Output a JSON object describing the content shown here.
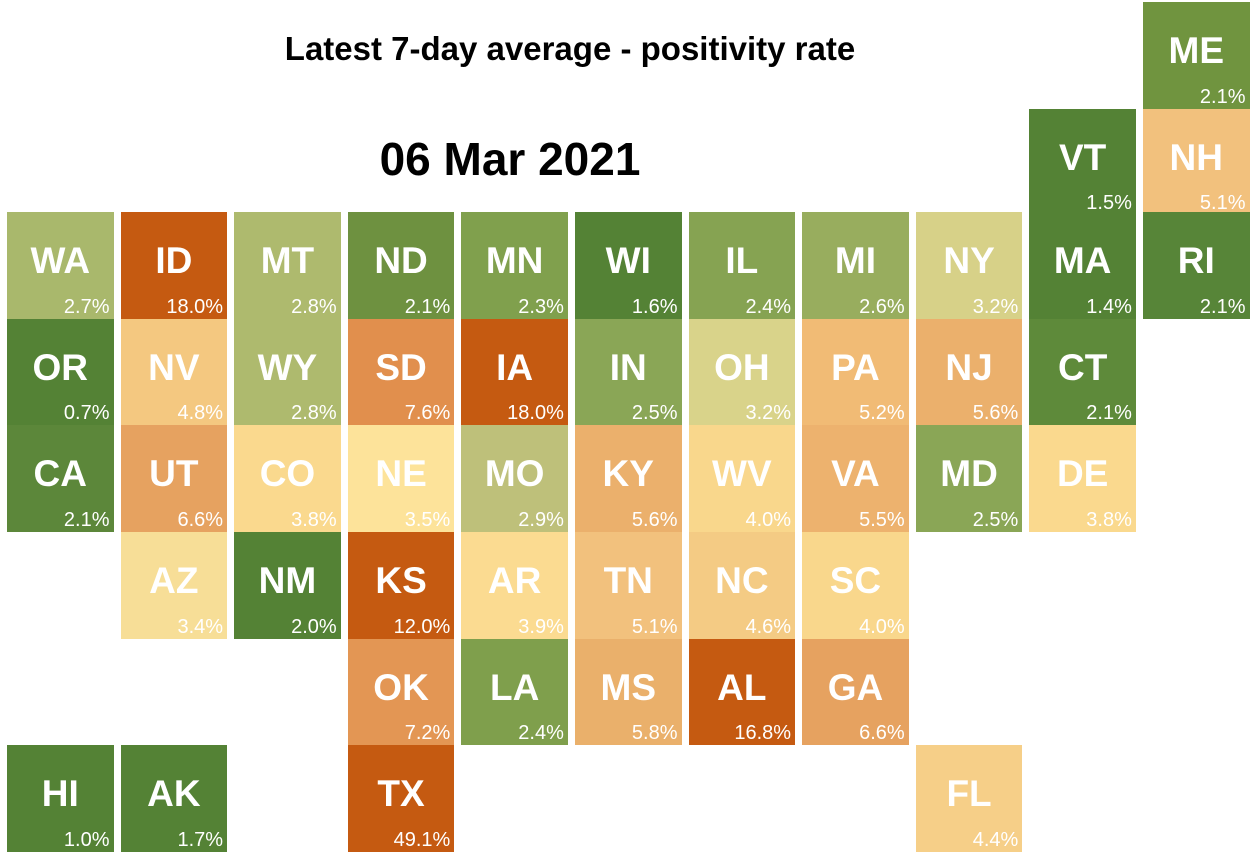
{
  "chart_data": {
    "type": "heatmap",
    "title": "Latest 7-day average - positivity rate",
    "subtitle": "06 Mar 2021",
    "unit": "%",
    "tiles": [
      {
        "state": "ME",
        "value": 2.1,
        "label": "2.1%",
        "row": 0,
        "col": 10,
        "color": "#70943f"
      },
      {
        "state": "VT",
        "value": 1.5,
        "label": "1.5%",
        "row": 1,
        "col": 9,
        "color": "#548235"
      },
      {
        "state": "NH",
        "value": 5.1,
        "label": "5.1%",
        "row": 1,
        "col": 10,
        "color": "#f2c17d"
      },
      {
        "state": "WA",
        "value": 2.7,
        "label": "2.7%",
        "row": 2,
        "col": 0,
        "color": "#a9b86c"
      },
      {
        "state": "ID",
        "value": 18.0,
        "label": "18.0%",
        "row": 2,
        "col": 1,
        "color": "#c55a11"
      },
      {
        "state": "MT",
        "value": 2.8,
        "label": "2.8%",
        "row": 2,
        "col": 2,
        "color": "#aeba6e"
      },
      {
        "state": "ND",
        "value": 2.1,
        "label": "2.1%",
        "row": 2,
        "col": 3,
        "color": "#6e9140"
      },
      {
        "state": "MN",
        "value": 2.3,
        "label": "2.3%",
        "row": 2,
        "col": 4,
        "color": "#80a04d"
      },
      {
        "state": "WI",
        "value": 1.6,
        "label": "1.6%",
        "row": 2,
        "col": 5,
        "color": "#548235"
      },
      {
        "state": "IL",
        "value": 2.4,
        "label": "2.4%",
        "row": 2,
        "col": 6,
        "color": "#86a352"
      },
      {
        "state": "MI",
        "value": 2.6,
        "label": "2.6%",
        "row": 2,
        "col": 7,
        "color": "#98ad5e"
      },
      {
        "state": "NY",
        "value": 3.2,
        "label": "3.2%",
        "row": 2,
        "col": 8,
        "color": "#d7d188"
      },
      {
        "state": "MA",
        "value": 1.4,
        "label": "1.4%",
        "row": 2,
        "col": 9,
        "color": "#548235"
      },
      {
        "state": "RI",
        "value": 2.1,
        "label": "2.1%",
        "row": 2,
        "col": 10,
        "color": "#578538"
      },
      {
        "state": "OR",
        "value": 0.7,
        "label": "0.7%",
        "row": 3,
        "col": 0,
        "color": "#548235"
      },
      {
        "state": "NV",
        "value": 4.8,
        "label": "4.8%",
        "row": 3,
        "col": 1,
        "color": "#f4c880"
      },
      {
        "state": "WY",
        "value": 2.8,
        "label": "2.8%",
        "row": 3,
        "col": 2,
        "color": "#aeba6e"
      },
      {
        "state": "SD",
        "value": 7.6,
        "label": "7.6%",
        "row": 3,
        "col": 3,
        "color": "#e18f4d"
      },
      {
        "state": "IA",
        "value": 18.0,
        "label": "18.0%",
        "row": 3,
        "col": 4,
        "color": "#c55a11"
      },
      {
        "state": "IN",
        "value": 2.5,
        "label": "2.5%",
        "row": 3,
        "col": 5,
        "color": "#8aa656"
      },
      {
        "state": "OH",
        "value": 3.2,
        "label": "3.2%",
        "row": 3,
        "col": 6,
        "color": "#d9d38a"
      },
      {
        "state": "PA",
        "value": 5.2,
        "label": "5.2%",
        "row": 3,
        "col": 7,
        "color": "#f1bb75"
      },
      {
        "state": "NJ",
        "value": 5.6,
        "label": "5.6%",
        "row": 3,
        "col": 8,
        "color": "#ebb06c"
      },
      {
        "state": "CT",
        "value": 2.1,
        "label": "2.1%",
        "row": 3,
        "col": 9,
        "color": "#5e8a3a"
      },
      {
        "state": "CA",
        "value": 2.1,
        "label": "2.1%",
        "row": 4,
        "col": 0,
        "color": "#5c873a"
      },
      {
        "state": "UT",
        "value": 6.6,
        "label": "6.6%",
        "row": 4,
        "col": 1,
        "color": "#e6a260"
      },
      {
        "state": "CO",
        "value": 3.8,
        "label": "3.8%",
        "row": 4,
        "col": 2,
        "color": "#fad98e"
      },
      {
        "state": "NE",
        "value": 3.5,
        "label": "3.5%",
        "row": 4,
        "col": 3,
        "color": "#fde39a"
      },
      {
        "state": "MO",
        "value": 2.9,
        "label": "2.9%",
        "row": 4,
        "col": 4,
        "color": "#bec07a"
      },
      {
        "state": "KY",
        "value": 5.6,
        "label": "5.6%",
        "row": 4,
        "col": 5,
        "color": "#ebb06c"
      },
      {
        "state": "WV",
        "value": 4.0,
        "label": "4.0%",
        "row": 4,
        "col": 6,
        "color": "#f9d78c"
      },
      {
        "state": "VA",
        "value": 5.5,
        "label": "5.5%",
        "row": 4,
        "col": 7,
        "color": "#edb26e"
      },
      {
        "state": "MD",
        "value": 2.5,
        "label": "2.5%",
        "row": 4,
        "col": 8,
        "color": "#8aa656"
      },
      {
        "state": "DE",
        "value": 3.8,
        "label": "3.8%",
        "row": 4,
        "col": 9,
        "color": "#fad98e"
      },
      {
        "state": "AZ",
        "value": 3.4,
        "label": "3.4%",
        "row": 5,
        "col": 1,
        "color": "#f7de97"
      },
      {
        "state": "NM",
        "value": 2.0,
        "label": "2.0%",
        "row": 5,
        "col": 2,
        "color": "#548235"
      },
      {
        "state": "KS",
        "value": 12.0,
        "label": "12.0%",
        "row": 5,
        "col": 3,
        "color": "#c55a11"
      },
      {
        "state": "AR",
        "value": 3.9,
        "label": "3.9%",
        "row": 5,
        "col": 4,
        "color": "#fbdb91"
      },
      {
        "state": "TN",
        "value": 5.1,
        "label": "5.1%",
        "row": 5,
        "col": 5,
        "color": "#f2c17d"
      },
      {
        "state": "NC",
        "value": 4.6,
        "label": "4.6%",
        "row": 5,
        "col": 6,
        "color": "#f4cb84"
      },
      {
        "state": "SC",
        "value": 4.0,
        "label": "4.0%",
        "row": 5,
        "col": 7,
        "color": "#f9d78c"
      },
      {
        "state": "OK",
        "value": 7.2,
        "label": "7.2%",
        "row": 6,
        "col": 3,
        "color": "#e39654"
      },
      {
        "state": "LA",
        "value": 2.4,
        "label": "2.4%",
        "row": 6,
        "col": 4,
        "color": "#7f9f4c"
      },
      {
        "state": "MS",
        "value": 5.8,
        "label": "5.8%",
        "row": 6,
        "col": 5,
        "color": "#eab06b"
      },
      {
        "state": "AL",
        "value": 16.8,
        "label": "16.8%",
        "row": 6,
        "col": 6,
        "color": "#c55a11"
      },
      {
        "state": "GA",
        "value": 6.6,
        "label": "6.6%",
        "row": 6,
        "col": 7,
        "color": "#e6a260"
      },
      {
        "state": "HI",
        "value": 1.0,
        "label": "1.0%",
        "row": 7,
        "col": 0,
        "color": "#548235"
      },
      {
        "state": "AK",
        "value": 1.7,
        "label": "1.7%",
        "row": 7,
        "col": 1,
        "color": "#548235"
      },
      {
        "state": "TX",
        "value": 49.1,
        "label": "49.1%",
        "row": 7,
        "col": 3,
        "color": "#c55a11"
      },
      {
        "state": "FL",
        "value": 4.4,
        "label": "4.4%",
        "row": 7,
        "col": 8,
        "color": "#f6cf88"
      }
    ]
  }
}
